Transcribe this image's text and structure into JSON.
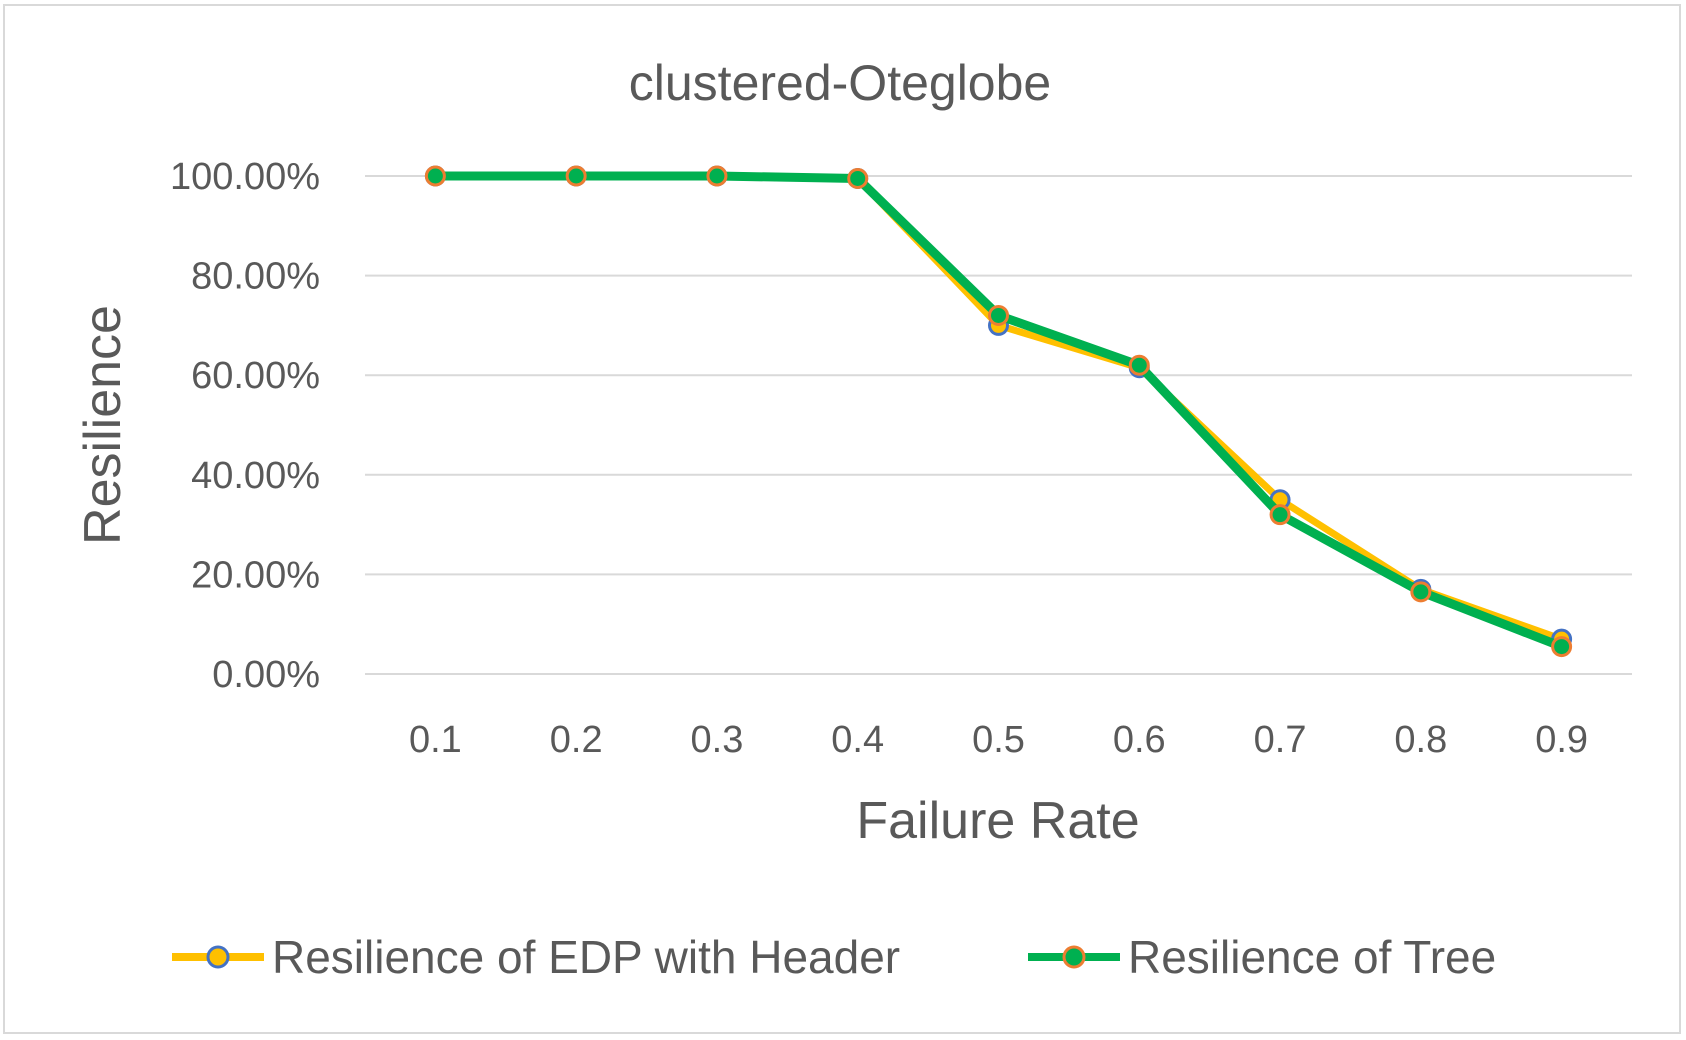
{
  "chart_data": {
    "type": "line",
    "title": "clustered-Oteglobe",
    "xlabel": "Failure Rate",
    "ylabel": "Resilience",
    "categories": [
      "0.1",
      "0.2",
      "0.3",
      "0.4",
      "0.5",
      "0.6",
      "0.7",
      "0.8",
      "0.9"
    ],
    "y_ticks": [
      "0.00%",
      "20.00%",
      "40.00%",
      "60.00%",
      "80.00%",
      "100.00%"
    ],
    "ylim": [
      0,
      1
    ],
    "grid": true,
    "legend_position": "bottom",
    "series": [
      {
        "name": "Resilience of EDP with Header",
        "values": [
          1.0,
          1.0,
          1.0,
          0.995,
          0.7,
          0.615,
          0.35,
          0.17,
          0.07
        ],
        "line_color": "#FFC000",
        "marker_fill": "#FFC000",
        "marker_edge": "#4472C4"
      },
      {
        "name": "Resilience of Tree",
        "values": [
          1.0,
          1.0,
          1.0,
          0.995,
          0.72,
          0.62,
          0.32,
          0.165,
          0.055
        ],
        "line_color": "#00B050",
        "marker_fill": "#00B050",
        "marker_edge": "#ED7D31"
      }
    ]
  }
}
